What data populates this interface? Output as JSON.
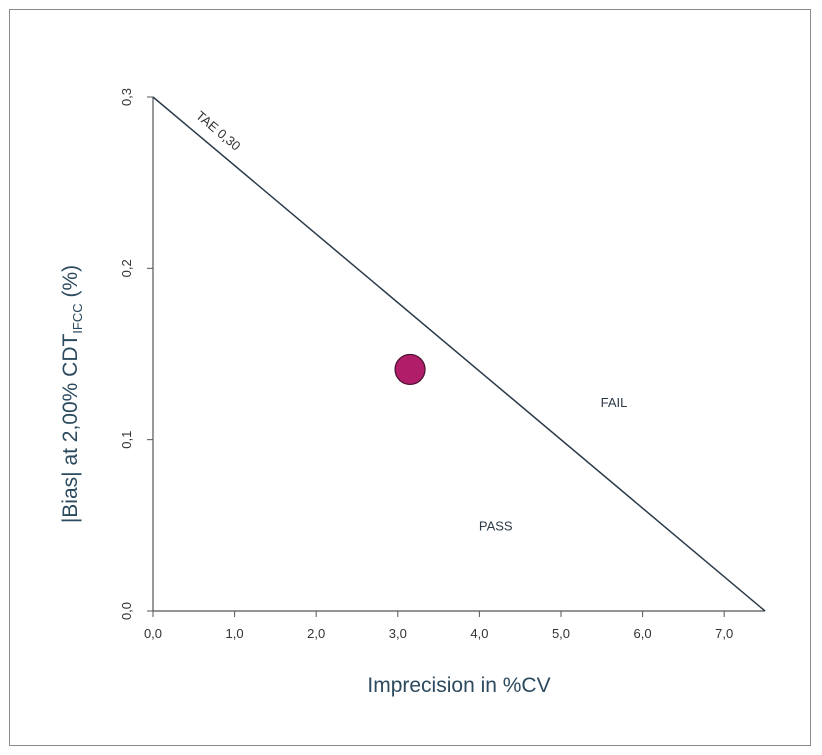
{
  "chart_data": {
    "type": "scatter",
    "title": "",
    "xlabel": "Imprecision in %CV",
    "ylabel_main": "|Bias| at 2,00% CDT",
    "ylabel_sub": "IFCC",
    "ylabel_tail": " (%)",
    "xlim": [
      0,
      7.5
    ],
    "ylim": [
      0,
      0.3
    ],
    "x_ticks": [
      0,
      1,
      2,
      3,
      4,
      5,
      6,
      7
    ],
    "x_tick_labels": [
      "0,0",
      "1,0",
      "2,0",
      "3,0",
      "4,0",
      "5,0",
      "6,0",
      "7,0"
    ],
    "y_ticks": [
      0,
      0.1,
      0.2,
      0.3
    ],
    "y_tick_labels": [
      "0,0",
      "0,1",
      "0,2",
      "0,3"
    ],
    "grid": false,
    "tae_line": {
      "label": "TAE 0,30",
      "from": [
        0,
        0.3
      ],
      "to": [
        7.5,
        0
      ]
    },
    "points": [
      {
        "x": 3.15,
        "y": 0.141
      }
    ],
    "regions": [
      {
        "label": "FAIL",
        "x": 5.65,
        "y": 0.119
      },
      {
        "label": "PASS",
        "x": 4.2,
        "y": 0.047
      }
    ],
    "colors": {
      "point": "#b01e6a",
      "line": "#2b3a48",
      "axis": "#555555",
      "label": "#2b4a5e"
    }
  }
}
